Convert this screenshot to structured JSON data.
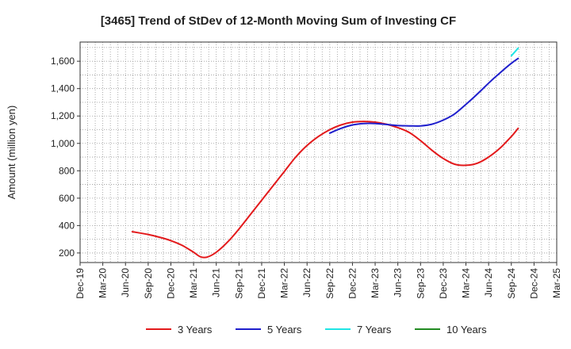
{
  "chart_data": {
    "type": "line",
    "title": "[3465]  Trend of StDev of 12-Month Moving Sum of Investing CF",
    "ylabel": "Amount (million yen)",
    "xlabel": "",
    "ylim": [
      130,
      1740
    ],
    "yticks": [
      200,
      400,
      600,
      800,
      1000,
      1200,
      1400,
      1600
    ],
    "ytick_labels": [
      "200",
      "400",
      "600",
      "800",
      "1,000",
      "1,200",
      "1,400",
      "1,600"
    ],
    "x_categories": [
      "Dec-19",
      "Mar-20",
      "Jun-20",
      "Sep-20",
      "Dec-20",
      "Mar-21",
      "Jun-21",
      "Sep-21",
      "Dec-21",
      "Mar-22",
      "Jun-22",
      "Sep-22",
      "Dec-22",
      "Mar-23",
      "Jun-23",
      "Sep-23",
      "Dec-23",
      "Mar-24",
      "Jun-24",
      "Sep-24",
      "Dec-24",
      "Mar-25"
    ],
    "grid": true,
    "legend_position": "bottom",
    "series": [
      {
        "name": "3 Years",
        "color": "#e31a1c",
        "points": [
          [
            2.3,
            355
          ],
          [
            3,
            335
          ],
          [
            3.5,
            315
          ],
          [
            4,
            290
          ],
          [
            4.5,
            255
          ],
          [
            5,
            205
          ],
          [
            5.3,
            172
          ],
          [
            5.6,
            170
          ],
          [
            6,
            205
          ],
          [
            6.5,
            280
          ],
          [
            7,
            375
          ],
          [
            7.5,
            480
          ],
          [
            8,
            585
          ],
          [
            8.5,
            690
          ],
          [
            9,
            795
          ],
          [
            9.5,
            900
          ],
          [
            10,
            985
          ],
          [
            10.5,
            1050
          ],
          [
            11,
            1100
          ],
          [
            11.5,
            1135
          ],
          [
            12,
            1155
          ],
          [
            12.5,
            1160
          ],
          [
            13,
            1155
          ],
          [
            13.5,
            1140
          ],
          [
            14,
            1115
          ],
          [
            14.5,
            1080
          ],
          [
            15,
            1020
          ],
          [
            15.5,
            950
          ],
          [
            16,
            890
          ],
          [
            16.5,
            848
          ],
          [
            17,
            840
          ],
          [
            17.5,
            855
          ],
          [
            18,
            900
          ],
          [
            18.5,
            965
          ],
          [
            19,
            1050
          ],
          [
            19.3,
            1110
          ]
        ]
      },
      {
        "name": "5 Years",
        "color": "#1f1fcc",
        "points": [
          [
            11,
            1075
          ],
          [
            11.5,
            1110
          ],
          [
            12,
            1135
          ],
          [
            12.5,
            1145
          ],
          [
            13,
            1145
          ],
          [
            13.5,
            1138
          ],
          [
            14,
            1130
          ],
          [
            14.5,
            1128
          ],
          [
            15,
            1128
          ],
          [
            15.5,
            1140
          ],
          [
            16,
            1170
          ],
          [
            16.5,
            1215
          ],
          [
            17,
            1285
          ],
          [
            17.5,
            1360
          ],
          [
            18,
            1440
          ],
          [
            18.5,
            1515
          ],
          [
            19,
            1585
          ],
          [
            19.3,
            1620
          ]
        ]
      },
      {
        "name": "7 Years",
        "color": "#1fe5e5",
        "points": [
          [
            19,
            1640
          ],
          [
            19.3,
            1695
          ]
        ]
      },
      {
        "name": "10 Years",
        "color": "#228b22",
        "points": []
      }
    ]
  }
}
